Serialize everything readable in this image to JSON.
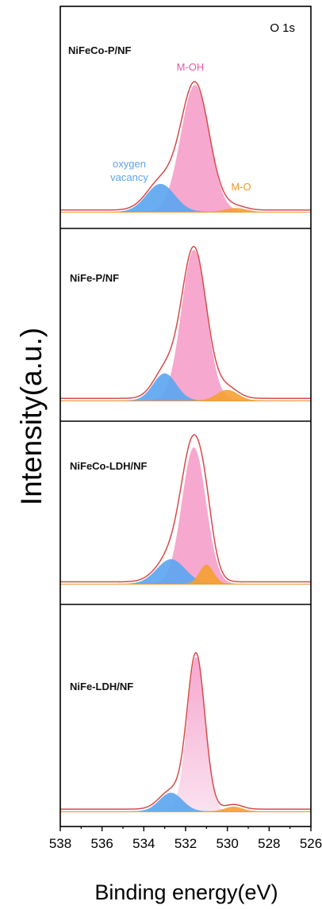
{
  "chart_data": {
    "type": "area",
    "ylabel": "Intensity(a.u.)",
    "xlabel": "Binding energy(eV)",
    "corner_label": "O 1s",
    "xlim": [
      538,
      526
    ],
    "x_ticks": [
      "538",
      "536",
      "534",
      "532",
      "530",
      "528",
      "526"
    ],
    "colors": {
      "envelope": "#d84a4a",
      "m_oh": "#f5a3cc",
      "oxygen_vacancy": "#5aa5f0",
      "m_o": "#f5a030",
      "m_oh_label": "#e45aa8",
      "vacancy_label": "#5aa5f0",
      "m_o_label": "#f09a2a"
    },
    "annotations": {
      "m_oh": "M-OH",
      "oxygen_vacancy": [
        "oxygen",
        "vacancy"
      ],
      "m_o": "M-O"
    },
    "panels": [
      {
        "label": "NiFeCo-P/NF",
        "baseline": 0.02,
        "components": [
          {
            "name": "M-OH",
            "center_eV": 531.55,
            "height": 1.0,
            "fwhm_eV": 1.6
          },
          {
            "name": "oxygen vacancy",
            "center_eV": 533.2,
            "height": 0.22,
            "fwhm_eV": 1.6
          },
          {
            "name": "M-O",
            "center_eV": 529.6,
            "height": 0.03,
            "fwhm_eV": 1.2
          }
        ]
      },
      {
        "label": "NiFe-P/NF",
        "baseline": 0.02,
        "components": [
          {
            "name": "M-OH",
            "center_eV": 531.6,
            "height": 1.0,
            "fwhm_eV": 1.4
          },
          {
            "name": "oxygen vacancy",
            "center_eV": 533.0,
            "height": 0.18,
            "fwhm_eV": 1.3
          },
          {
            "name": "M-O",
            "center_eV": 530.0,
            "height": 0.07,
            "fwhm_eV": 1.2
          }
        ]
      },
      {
        "label": "NiFeCo-LDH/NF",
        "baseline": 0.02,
        "components": [
          {
            "name": "M-OH",
            "center_eV": 531.6,
            "height": 1.0,
            "fwhm_eV": 1.35
          },
          {
            "name": "oxygen vacancy",
            "center_eV": 532.7,
            "height": 0.18,
            "fwhm_eV": 1.6
          },
          {
            "name": "M-O",
            "center_eV": 531.0,
            "height": 0.14,
            "fwhm_eV": 0.8
          }
        ]
      },
      {
        "label": "NiFe-LDH/NF",
        "baseline": 0.02,
        "components": [
          {
            "name": "M-OH",
            "center_eV": 531.5,
            "height": 1.0,
            "fwhm_eV": 1.0
          },
          {
            "name": "oxygen vacancy",
            "center_eV": 532.7,
            "height": 0.12,
            "fwhm_eV": 1.3
          },
          {
            "name": "M-O",
            "center_eV": 529.7,
            "height": 0.03,
            "fwhm_eV": 1.0
          }
        ]
      }
    ]
  }
}
